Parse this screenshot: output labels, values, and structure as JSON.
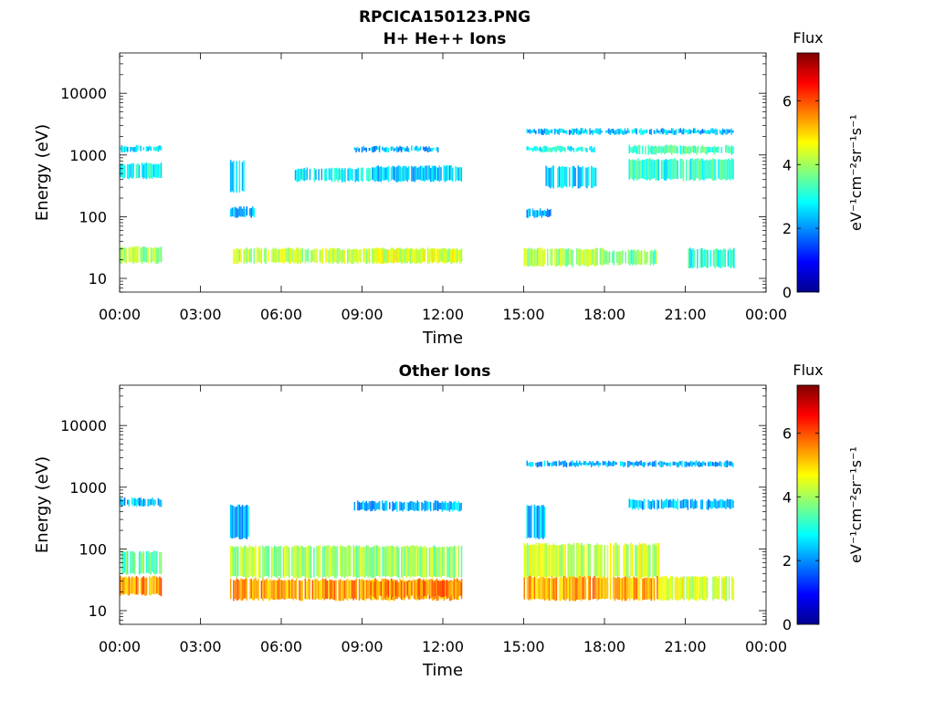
{
  "figure_title": "RPCICA150123.PNG",
  "chart_data": [
    {
      "type": "heatmap",
      "title": "H+ He++ Ions",
      "xlabel": "Time",
      "ylabel": "Energy (eV)",
      "x_ticks": [
        "00:00",
        "03:00",
        "06:00",
        "09:00",
        "12:00",
        "15:00",
        "18:00",
        "21:00",
        "00:00"
      ],
      "xlim_hours": [
        0,
        24
      ],
      "y_scale": "log",
      "y_ticks": [
        10,
        100,
        1000,
        10000
      ],
      "ylim": [
        6,
        45000
      ],
      "colorbar": {
        "label": "Flux",
        "units": "eV⁻¹cm⁻²sr⁻¹s⁻¹",
        "ticks": [
          0,
          2,
          4,
          6
        ],
        "range": [
          0,
          7.5
        ],
        "colormap": "jet"
      },
      "bands": [
        {
          "t0": 0.0,
          "t1": 1.55,
          "e_low": 18,
          "e_high": 32,
          "flux": 4.0
        },
        {
          "t0": 0.0,
          "t1": 1.55,
          "e_low": 420,
          "e_high": 720,
          "flux": 2.8
        },
        {
          "t0": 0.0,
          "t1": 1.55,
          "e_low": 1150,
          "e_high": 1400,
          "flux": 2.5
        },
        {
          "t0": 4.1,
          "t1": 12.7,
          "e_low": 18,
          "e_high": 30,
          "flux": 4.2
        },
        {
          "t0": 9.3,
          "t1": 12.7,
          "e_low": 18,
          "e_high": 30,
          "flux": 4.4
        },
        {
          "t0": 4.1,
          "t1": 5.0,
          "e_low": 100,
          "e_high": 140,
          "flux": 2.3
        },
        {
          "t0": 4.1,
          "t1": 4.6,
          "e_low": 250,
          "e_high": 800,
          "flux": 2.5
        },
        {
          "t0": 6.5,
          "t1": 9.3,
          "e_low": 380,
          "e_high": 600,
          "flux": 2.7
        },
        {
          "t0": 9.3,
          "t1": 12.7,
          "e_low": 380,
          "e_high": 650,
          "flux": 2.4
        },
        {
          "t0": 8.7,
          "t1": 11.8,
          "e_low": 1150,
          "e_high": 1350,
          "flux": 2.3
        },
        {
          "t0": 15.0,
          "t1": 18.0,
          "e_low": 16,
          "e_high": 30,
          "flux": 4.1
        },
        {
          "t0": 18.0,
          "t1": 20.0,
          "e_low": 17,
          "e_high": 28,
          "flux": 3.6
        },
        {
          "t0": 21.1,
          "t1": 22.8,
          "e_low": 15,
          "e_high": 30,
          "flux": 3.1
        },
        {
          "t0": 15.7,
          "t1": 17.7,
          "e_low": 300,
          "e_high": 650,
          "flux": 2.6
        },
        {
          "t0": 15.1,
          "t1": 17.6,
          "e_low": 1150,
          "e_high": 1350,
          "flux": 2.8
        },
        {
          "t0": 18.9,
          "t1": 22.8,
          "e_low": 400,
          "e_high": 850,
          "flux": 3.1
        },
        {
          "t0": 18.9,
          "t1": 22.8,
          "e_low": 1050,
          "e_high": 1400,
          "flux": 3.4
        },
        {
          "t0": 15.1,
          "t1": 16.0,
          "e_low": 100,
          "e_high": 130,
          "flux": 2.2
        },
        {
          "t0": 15.1,
          "t1": 22.8,
          "e_low": 2200,
          "e_high": 2600,
          "flux": 2.3
        }
      ]
    },
    {
      "type": "heatmap",
      "title": "Other Ions",
      "xlabel": "Time",
      "ylabel": "Energy (eV)",
      "x_ticks": [
        "00:00",
        "03:00",
        "06:00",
        "09:00",
        "12:00",
        "15:00",
        "18:00",
        "21:00",
        "00:00"
      ],
      "xlim_hours": [
        0,
        24
      ],
      "y_scale": "log",
      "y_ticks": [
        10,
        100,
        1000,
        10000
      ],
      "ylim": [
        6,
        45000
      ],
      "colorbar": {
        "label": "Flux",
        "units": "eV⁻¹cm⁻²sr⁻¹s⁻¹",
        "ticks": [
          0,
          2,
          4,
          6
        ],
        "range": [
          0,
          7.5
        ],
        "colormap": "jet"
      },
      "bands": [
        {
          "t0": 0.0,
          "t1": 1.55,
          "e_low": 40,
          "e_high": 90,
          "flux": 3.5
        },
        {
          "t0": 0.0,
          "t1": 1.55,
          "e_low": 18,
          "e_high": 35,
          "flux": 5.5
        },
        {
          "t0": 0.0,
          "t1": 1.55,
          "e_low": 500,
          "e_high": 650,
          "flux": 2.3
        },
        {
          "t0": 4.1,
          "t1": 12.7,
          "e_low": 35,
          "e_high": 110,
          "flux": 4.0
        },
        {
          "t0": 4.1,
          "t1": 12.7,
          "e_low": 15,
          "e_high": 32,
          "flux": 5.4
        },
        {
          "t0": 9.3,
          "t1": 12.7,
          "e_low": 17,
          "e_high": 30,
          "flux": 5.6
        },
        {
          "t0": 4.1,
          "t1": 4.8,
          "e_low": 150,
          "e_high": 500,
          "flux": 2.3
        },
        {
          "t0": 8.7,
          "t1": 12.7,
          "e_low": 420,
          "e_high": 580,
          "flux": 2.3
        },
        {
          "t0": 15.0,
          "t1": 20.0,
          "e_low": 35,
          "e_high": 120,
          "flux": 4.3
        },
        {
          "t0": 15.0,
          "t1": 20.0,
          "e_low": 15,
          "e_high": 35,
          "flux": 5.3
        },
        {
          "t0": 20.0,
          "t1": 22.8,
          "e_low": 15,
          "e_high": 35,
          "flux": 4.4
        },
        {
          "t0": 15.1,
          "t1": 15.8,
          "e_low": 150,
          "e_high": 500,
          "flux": 2.4
        },
        {
          "t0": 18.9,
          "t1": 22.8,
          "e_low": 450,
          "e_high": 620,
          "flux": 2.3
        },
        {
          "t0": 15.1,
          "t1": 22.8,
          "e_low": 2200,
          "e_high": 2600,
          "flux": 2.2
        }
      ]
    }
  ]
}
